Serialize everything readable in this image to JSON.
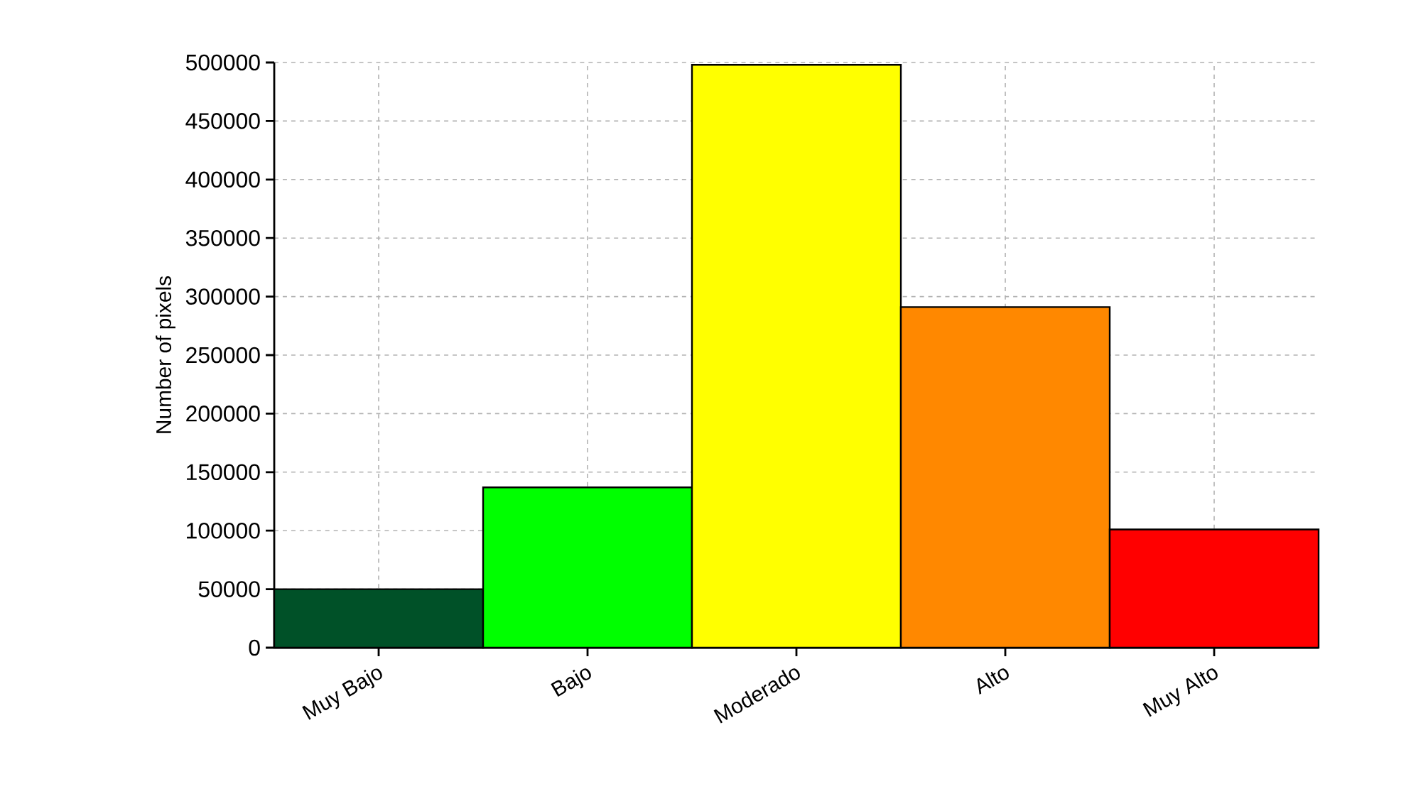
{
  "chart_data": {
    "type": "bar",
    "ylabel": "Number of pixels",
    "categories": [
      "Muy Bajo",
      "Bajo",
      "Moderado",
      "Alto",
      "Muy Alto"
    ],
    "values": [
      50000,
      137000,
      498000,
      291000,
      101000
    ],
    "colors": [
      "#005128",
      "#00ff00",
      "#ffff00",
      "#ff8800",
      "#ff0000"
    ],
    "ylim": [
      0,
      500000
    ],
    "yticks": [
      0,
      50000,
      100000,
      150000,
      200000,
      250000,
      300000,
      350000,
      400000,
      450000,
      500000
    ],
    "grid": true
  }
}
